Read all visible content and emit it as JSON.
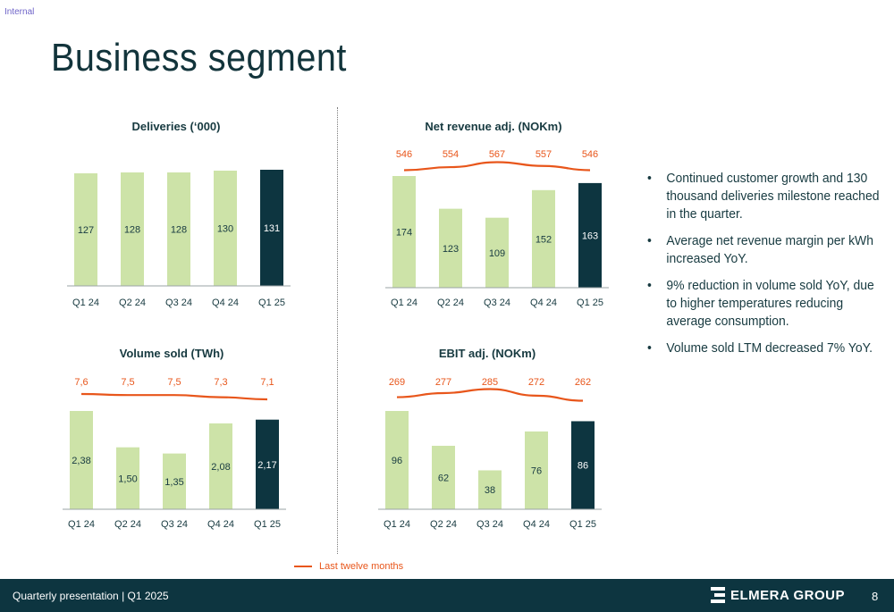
{
  "header": {
    "classification": "Internal",
    "title": "Business segment"
  },
  "colors": {
    "bar": "#cde3a8",
    "bar_highlight": "#0d3540",
    "line": "#e8561b",
    "text": "#173a40"
  },
  "chart_data": [
    {
      "type": "bar",
      "title": "Deliveries (‘000)",
      "categories": [
        "Q1 24",
        "Q2 24",
        "Q3 24",
        "Q4 24",
        "Q1 25"
      ],
      "series": [
        {
          "values": [
            127,
            128,
            128,
            130,
            131
          ]
        }
      ],
      "value_labels": [
        "127",
        "128",
        "128",
        "130",
        "131"
      ],
      "highlight_index": 4,
      "ylim": [
        0,
        131
      ]
    },
    {
      "type": "bar",
      "title": "Net revenue adj. (NOKm)",
      "categories": [
        "Q1 24",
        "Q2 24",
        "Q3 24",
        "Q4 24",
        "Q1 25"
      ],
      "series": [
        {
          "values": [
            174,
            123,
            109,
            152,
            163
          ]
        }
      ],
      "value_labels": [
        "174",
        "123",
        "109",
        "152",
        "163"
      ],
      "line": {
        "name": "Last twelve months",
        "values": [
          546,
          554,
          567,
          557,
          546
        ],
        "labels": [
          "546",
          "554",
          "567",
          "557",
          "546"
        ]
      },
      "highlight_index": 4,
      "ylim": [
        0,
        174
      ]
    },
    {
      "type": "bar",
      "title": "Volume sold (TWh)",
      "categories": [
        "Q1 24",
        "Q2 24",
        "Q3 24",
        "Q4 24",
        "Q1 25"
      ],
      "series": [
        {
          "values": [
            2.38,
            1.5,
            1.35,
            2.08,
            2.17
          ]
        }
      ],
      "value_labels": [
        "2,38",
        "1,50",
        "1,35",
        "2,08",
        "2,17"
      ],
      "line": {
        "name": "Last twelve months",
        "values": [
          7.6,
          7.5,
          7.5,
          7.3,
          7.1
        ],
        "labels": [
          "7,6",
          "7,5",
          "7,5",
          "7,3",
          "7,1"
        ]
      },
      "highlight_index": 4,
      "ylim": [
        0,
        2.38
      ]
    },
    {
      "type": "bar",
      "title": "EBIT adj. (NOKm)",
      "categories": [
        "Q1 24",
        "Q2 24",
        "Q3 24",
        "Q4 24",
        "Q1 25"
      ],
      "series": [
        {
          "values": [
            96,
            62,
            38,
            76,
            86
          ]
        }
      ],
      "value_labels": [
        "96",
        "62",
        "38",
        "76",
        "86"
      ],
      "line": {
        "name": "Last twelve months",
        "values": [
          269,
          277,
          285,
          272,
          262
        ],
        "labels": [
          "269",
          "277",
          "285",
          "272",
          "262"
        ]
      },
      "highlight_index": 4,
      "ylim": [
        0,
        96
      ]
    }
  ],
  "bullets": [
    "Continued customer growth and 130 thousand deliveries milestone reached in the quarter.",
    "Average net revenue margin per kWh increased YoY.",
    "9% reduction in volume sold YoY, due to higher temperatures reducing average consumption.",
    "Volume sold LTM decreased 7% YoY."
  ],
  "bullet_symbol": "•",
  "legend": {
    "label": "Last twelve months"
  },
  "footer": {
    "text": "Quarterly presentation | Q1 2025",
    "logo_text": "ELMERA GROUP",
    "page_number": "8"
  }
}
